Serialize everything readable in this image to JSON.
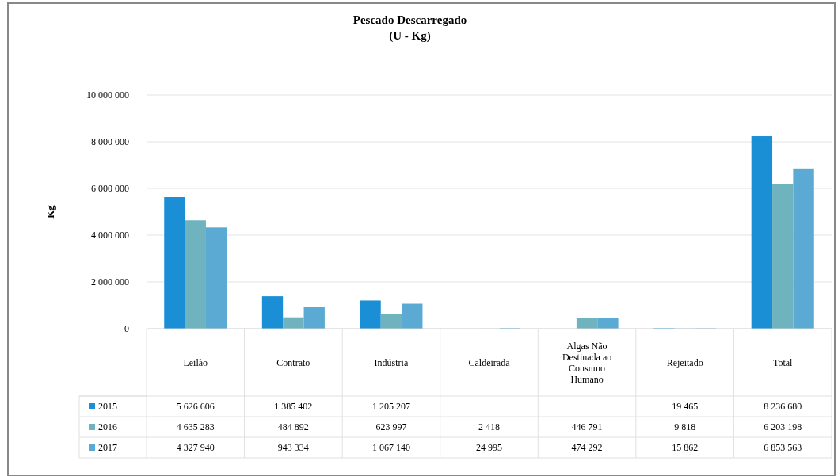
{
  "chart_data": {
    "type": "bar",
    "title": "Pescado Descarregado",
    "subtitle": "(U - Kg)",
    "ylabel": "Kg",
    "categories": [
      "Leilão",
      "Contrato",
      "Indústria",
      "Caldeirada",
      "Algas Não Destinada ao Consumo Humano",
      "Rejeitado",
      "Total"
    ],
    "series": [
      {
        "name": "2015",
        "color": "#1a8fd6",
        "values": [
          5626606,
          1385402,
          1205207,
          null,
          null,
          19465,
          8236680
        ],
        "value_labels": [
          "5 626 606",
          "1 385 402",
          "1 205 207",
          null,
          null,
          "19 465",
          "8 236 680"
        ]
      },
      {
        "name": "2016",
        "color": "#6fb3bf",
        "values": [
          4635283,
          484892,
          623997,
          2418,
          446791,
          9818,
          6203198
        ],
        "value_labels": [
          "4 635 283",
          "484 892",
          "623 997",
          "2 418",
          "446 791",
          "9 818",
          "6 203 198"
        ]
      },
      {
        "name": "2017",
        "color": "#5aaad4",
        "values": [
          4327940,
          943334,
          1067140,
          24995,
          474292,
          15862,
          6853563
        ],
        "value_labels": [
          "4 327 940",
          "943 334",
          "1 067 140",
          "24 995",
          "474 292",
          "15 862",
          "6 853 563"
        ]
      }
    ],
    "ylim": [
      0,
      10000000
    ],
    "yticks": [
      0,
      {
        "value": 2000000,
        "label": "2 000 000"
      },
      {
        "value": 4000000,
        "label": "4 000 000"
      },
      {
        "value": 6000000,
        "label": "6 000 000"
      },
      {
        "value": 8000000,
        "label": "8 000 000"
      },
      {
        "value": 10000000,
        "label": "10 000 000"
      }
    ],
    "grid": "y",
    "legend": "bottom"
  }
}
